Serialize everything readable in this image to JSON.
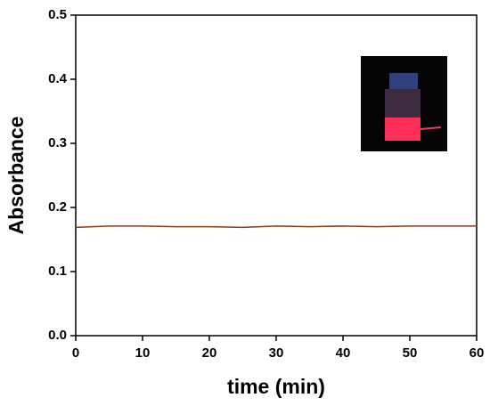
{
  "chart_data": {
    "type": "line",
    "x_label": "time (min)",
    "y_label": "Absorbance",
    "x": [
      0,
      5,
      10,
      15,
      20,
      25,
      30,
      35,
      40,
      45,
      50,
      55,
      60
    ],
    "series": [
      {
        "color": "#8b3a1a",
        "values": [
          0.169,
          0.171,
          0.171,
          0.17,
          0.17,
          0.169,
          0.171,
          0.17,
          0.171,
          0.17,
          0.171,
          0.171,
          0.171
        ]
      }
    ],
    "xlim": [
      0,
      60
    ],
    "xticks": [
      0,
      10,
      20,
      30,
      40,
      50,
      60
    ],
    "ylim": [
      0,
      0.5
    ],
    "yticks": [
      {
        "value": 0,
        "label": "0.0"
      },
      0.1,
      0.2,
      0.3,
      0.4,
      0.5
    ]
  }
}
